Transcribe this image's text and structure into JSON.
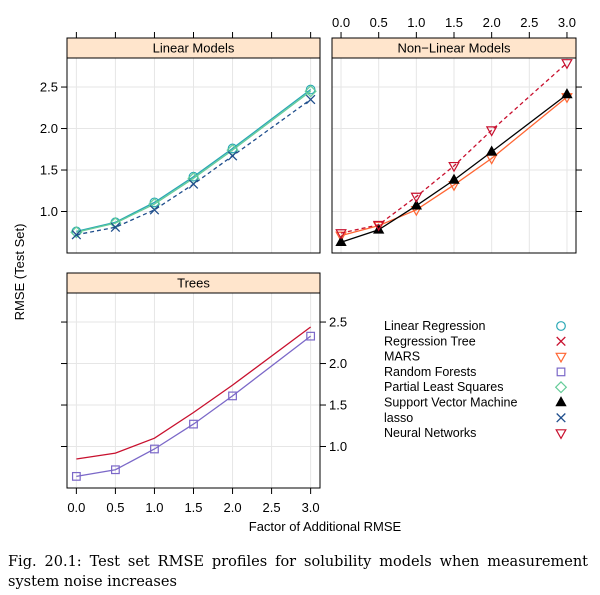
{
  "chart_data": {
    "type": "line",
    "ylabel": "RMSE (Test Set)",
    "xlabel": "Factor of Additional RMSE",
    "x": [
      0,
      0.5,
      1,
      1.5,
      2,
      3
    ],
    "x_ticks": [
      "0.0",
      "0.5",
      "1.0",
      "1.5",
      "2.0",
      "2.5",
      "3.0"
    ],
    "y_ticks": [
      "1.0",
      "1.5",
      "2.0",
      "2.5"
    ],
    "xlim": [
      -0.12,
      3.12
    ],
    "ylim": [
      0.5,
      2.85
    ],
    "grid": true,
    "legend_position": "bottom-right",
    "legend": [
      {
        "label": "Linear Regression",
        "color": "#2aa8b5",
        "symbol": "circle"
      },
      {
        "label": "Regression Tree",
        "color": "#c8102e",
        "symbol": "x"
      },
      {
        "label": "MARS",
        "color": "#ff6633",
        "symbol": "triangle-down"
      },
      {
        "label": "Random Forests",
        "color": "#7b68c8",
        "symbol": "square"
      },
      {
        "label": "Partial Least Squares",
        "color": "#66cc99",
        "symbol": "diamond"
      },
      {
        "label": "Support Vector Machine",
        "color": "#000000",
        "symbol": "triangle-up-filled"
      },
      {
        "label": "lasso",
        "color": "#1f4e8c",
        "symbol": "x"
      },
      {
        "label": "Neural Networks",
        "color": "#c8102e",
        "symbol": "triangle-down"
      }
    ],
    "panels": [
      {
        "title": "Linear Models",
        "series": [
          {
            "name": "Linear Regression",
            "values": [
              0.76,
              0.87,
              1.11,
              1.42,
              1.76,
              2.47
            ],
            "color": "#2aa8b5",
            "symbol": "circle",
            "dash": "solid"
          },
          {
            "name": "Partial Least Squares",
            "values": [
              0.75,
              0.86,
              1.09,
              1.4,
              1.74,
              2.45
            ],
            "color": "#66cc99",
            "symbol": "diamond",
            "dash": "solid"
          },
          {
            "name": "lasso",
            "values": [
              0.72,
              0.81,
              1.02,
              1.33,
              1.67,
              2.35
            ],
            "color": "#1f4e8c",
            "symbol": "x",
            "dash": "dashed"
          }
        ]
      },
      {
        "title": "Non−Linear Models",
        "series": [
          {
            "name": "MARS",
            "values": [
              0.71,
              0.83,
              1.02,
              1.32,
              1.64,
              2.38
            ],
            "color": "#ff6633",
            "symbol": "triangle-down",
            "dash": "solid"
          },
          {
            "name": "Support Vector Machine",
            "values": [
              0.63,
              0.78,
              1.07,
              1.38,
              1.72,
              2.41
            ],
            "color": "#000000",
            "symbol": "triangle-up-filled",
            "dash": "solid"
          },
          {
            "name": "Neural Networks",
            "values": [
              0.74,
              0.84,
              1.18,
              1.55,
              1.98,
              2.79
            ],
            "color": "#c8102e",
            "symbol": "triangle-down",
            "dash": "dashed"
          }
        ]
      },
      {
        "title": "Trees",
        "series": [
          {
            "name": "Regression Tree",
            "values": [
              0.85,
              0.92,
              1.1,
              1.41,
              1.74,
              2.44
            ],
            "color": "#c8102e",
            "symbol": "none",
            "dash": "solid"
          },
          {
            "name": "Random Forests",
            "values": [
              0.64,
              0.72,
              0.97,
              1.27,
              1.61,
              2.33
            ],
            "color": "#7b68c8",
            "symbol": "square",
            "dash": "solid"
          }
        ]
      }
    ]
  },
  "caption": "Fig. 20.1: Test set RMSE profiles for solubility models when measurement system noise increases"
}
